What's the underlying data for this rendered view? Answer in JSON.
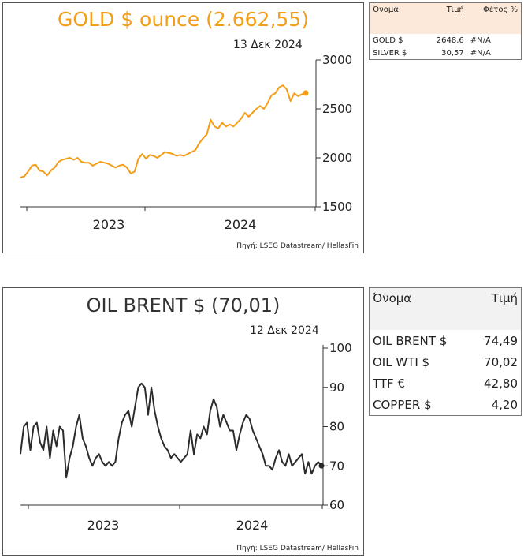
{
  "gold_panel": {
    "title": "GOLD $ ounce (2.662,55)",
    "date": "13 Δεκ 2024",
    "source": "Πηγή: LSEG Datastream/ HellasFin",
    "colors": {
      "line": "#f59d17",
      "title": "#f59d17"
    }
  },
  "oil_panel": {
    "title": "OIL BRENT $ (70,01)",
    "date": "12 Δεκ 2024",
    "source": "Πηγή: LSEG Datastream/ HellasFin",
    "colors": {
      "line": "#2b2b2b",
      "title": "#333333"
    }
  },
  "metals_table": {
    "headers": [
      "Όνομα",
      "Τιμή",
      "Φέτος %"
    ],
    "rows": [
      [
        "GOLD $",
        "2648,6",
        "#N/A"
      ],
      [
        "SILVER $",
        "30,57",
        "#N/A"
      ]
    ]
  },
  "energy_table": {
    "headers": [
      "Όνομα",
      "Τιμή"
    ],
    "rows": [
      [
        "OIL BRENT $",
        "74,49"
      ],
      [
        "OIL WTI $",
        "70,02"
      ],
      [
        "TTF €",
        "42,80"
      ],
      [
        "COPPER $",
        "4,20"
      ]
    ]
  },
  "chart_data": [
    {
      "type": "line",
      "title": "GOLD $ ounce (2.662,55)",
      "x_range": [
        "2022-06",
        "2024-12"
      ],
      "x_tick_labels": [
        "2023",
        "2024"
      ],
      "y_ticks": [
        "1500",
        "2000",
        "2500",
        "3000"
      ],
      "ylim": [
        1500,
        3000
      ],
      "series": [
        {
          "values": [
            1800,
            1810,
            1860,
            1920,
            1930,
            1870,
            1860,
            1820,
            1870,
            1900,
            1960,
            1980,
            1990,
            2000,
            1980,
            2000,
            1960,
            1950,
            1950,
            1920,
            1940,
            1960,
            1950,
            1940,
            1920,
            1900,
            1920,
            1930,
            1900,
            1840,
            1860,
            1990,
            2040,
            1990,
            2030,
            2020,
            2000,
            2030,
            2060,
            2050,
            2040,
            2020,
            2030,
            2020,
            2040,
            2060,
            2080,
            2150,
            2200,
            2240,
            2390,
            2320,
            2300,
            2360,
            2320,
            2340,
            2320,
            2360,
            2400,
            2460,
            2420,
            2460,
            2500,
            2530,
            2500,
            2560,
            2640,
            2660,
            2720,
            2740,
            2700,
            2580,
            2660,
            2630,
            2650,
            2662.55
          ]
        }
      ],
      "last_value": 2662.55,
      "legend": "none",
      "grid": false
    },
    {
      "type": "line",
      "title": "OIL BRENT $ (70,01)",
      "x_range": [
        "2022-06",
        "2024-12"
      ],
      "x_tick_labels": [
        "2023",
        "2024"
      ],
      "y_ticks": [
        "60",
        "70",
        "80",
        "90",
        "100"
      ],
      "ylim": [
        60,
        100
      ],
      "series": [
        {
          "values": [
            73,
            80,
            81,
            74,
            80,
            81,
            76,
            74,
            80,
            72,
            79,
            75,
            80,
            79,
            67,
            72,
            75,
            80,
            83,
            77,
            75,
            72,
            70,
            72,
            73,
            71,
            70,
            71,
            70,
            71,
            77,
            81,
            83,
            84,
            80,
            85,
            90,
            91,
            90,
            83,
            90,
            84,
            80,
            77,
            75,
            74,
            72,
            73,
            72,
            71,
            72,
            73,
            79,
            73,
            78,
            77,
            80,
            78,
            84,
            87,
            85,
            80,
            83,
            81,
            79,
            79,
            74,
            78,
            81,
            83,
            82,
            79,
            77,
            75,
            73,
            70,
            70,
            69,
            72,
            74,
            71,
            70,
            73,
            70,
            71,
            72,
            73,
            68,
            71,
            68,
            70,
            71,
            70.01
          ]
        }
      ],
      "last_value": 70.01,
      "legend": "none",
      "grid": false
    }
  ]
}
